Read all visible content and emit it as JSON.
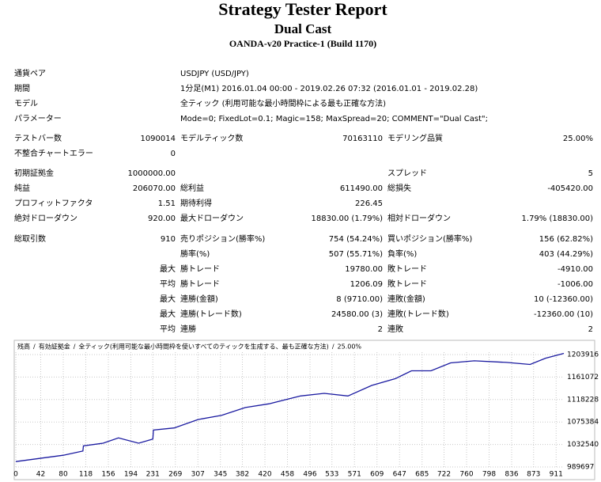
{
  "header": {
    "title": "Strategy Tester Report",
    "subtitle": "Dual Cast",
    "server": "OANDA-v20 Practice-1 (Build 1170)"
  },
  "table": {
    "rows": [
      [
        "通貨ペア",
        "USDJPY (USD/JPY)"
      ],
      [
        "期間",
        "1分足(M1) 2016.01.04 00:00 - 2019.02.26 07:32 (2016.01.01 - 2019.02.28)"
      ],
      [
        "モデル",
        "全ティック (利用可能な最小時間枠による最も正確な方法)"
      ],
      [
        "パラメーター",
        "Mode=0; FixedLot=0.1; Magic=158; MaxSpread=20; COMMENT=\"Dual Cast\";"
      ],
      [
        "テストバー数",
        "1090014",
        "モデルティック数",
        "70163110",
        "モデリング品質",
        "25.00%"
      ],
      [
        "不整合チャートエラー",
        "0",
        null,
        null,
        null,
        null
      ],
      [
        "初期証拠金",
        "1000000.00",
        null,
        null,
        "スプレッド",
        "5"
      ],
      [
        "純益",
        "206070.00",
        "総利益",
        "611490.00",
        "総損失",
        "-405420.00"
      ],
      [
        "プロフィットファクタ",
        "1.51",
        "期待利得",
        "226.45",
        null,
        null
      ],
      [
        "絶対ドローダウン",
        "920.00",
        "最大ドローダウン",
        "18830.00 (1.79%)",
        "相対ドローダウン",
        "1.79% (18830.00)"
      ],
      [
        "総取引数",
        "910",
        "売りポジション(勝率%)",
        "754 (54.24%)",
        "買いポジション(勝率%)",
        "156 (62.82%)"
      ],
      [
        null,
        null,
        "勝率(%)",
        "507 (55.71%)",
        "負率(%)",
        "403 (44.29%)"
      ],
      [
        null,
        "最大",
        "勝トレード",
        "19780.00",
        "敗トレード",
        "-4910.00"
      ],
      [
        null,
        "平均",
        "勝トレード",
        "1206.09",
        "敗トレード",
        "-1006.00"
      ],
      [
        null,
        "最大",
        "連勝(金額)",
        "8 (9710.00)",
        "連敗(金額)",
        "10 (-12360.00)"
      ],
      [
        null,
        "最大",
        "連勝(トレード数)",
        "24580.00 (3)",
        "連敗(トレード数)",
        "-12360.00 (10)"
      ],
      [
        null,
        "平均",
        "連勝",
        "2",
        "連敗",
        "2"
      ]
    ]
  },
  "chart": {
    "type": "line",
    "legend": [
      {
        "text": "残高",
        "color": "#0000c0"
      },
      {
        "text": "/",
        "color": "#000000"
      },
      {
        "text": "有効証拠金",
        "color": "#008000"
      },
      {
        "text": "/",
        "color": "#000000"
      },
      {
        "text": "全ティック(利用可能な最小時間枠を使いすべてのティックを生成する、最も正確な方法)",
        "color": "#000000"
      },
      {
        "text": "/",
        "color": "#000000"
      },
      {
        "text": "25.00%",
        "color": "#000000"
      }
    ],
    "x": [
      0,
      40,
      80,
      113,
      114,
      147,
      173,
      207,
      231,
      232,
      267,
      307,
      347,
      387,
      427,
      480,
      520,
      560,
      600,
      640,
      667,
      700,
      733,
      773,
      827,
      867,
      893,
      924
    ],
    "series": [
      {
        "name": "残高",
        "color": "#1a1aa0",
        "values": [
          1000000,
          1006000,
          1012000,
          1020000,
          1030000,
          1035000,
          1045000,
          1035000,
          1043000,
          1060000,
          1064000,
          1080000,
          1088000,
          1103000,
          1110000,
          1125000,
          1130000,
          1125000,
          1145000,
          1158000,
          1173000,
          1173000,
          1188000,
          1192000,
          1189000,
          1185000,
          1197000,
          1206070
        ]
      }
    ],
    "xlim": [
      0,
      924
    ],
    "ylim": [
      989697,
      1208400
    ],
    "xticks": [
      0,
      42,
      80,
      118,
      156,
      194,
      231,
      269,
      307,
      345,
      382,
      420,
      458,
      496,
      533,
      571,
      609,
      647,
      685,
      722,
      760,
      798,
      836,
      873,
      911
    ],
    "yticks": [
      989697,
      1032540,
      1075384,
      1118228,
      1161072,
      1203916
    ],
    "grid": true
  }
}
